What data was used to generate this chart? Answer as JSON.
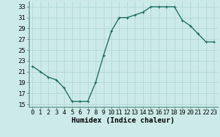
{
  "x": [
    0,
    1,
    2,
    3,
    4,
    5,
    6,
    7,
    8,
    9,
    10,
    11,
    12,
    13,
    14,
    15,
    16,
    17,
    18,
    19,
    20,
    21,
    22,
    23
  ],
  "y": [
    22,
    21,
    20,
    19.5,
    18,
    15.5,
    15.5,
    15.5,
    19,
    24,
    28.5,
    31,
    31,
    31.5,
    32,
    33,
    33,
    33,
    33,
    30.5,
    29.5,
    28,
    26.5,
    26.5
  ],
  "line_color": "#1a6b5e",
  "marker": "+",
  "markersize": 3,
  "linewidth": 1.0,
  "xlabel": "Humidex (Indice chaleur)",
  "ylim": [
    14.5,
    34.0
  ],
  "yticks": [
    15,
    17,
    19,
    21,
    23,
    25,
    27,
    29,
    31,
    33
  ],
  "xticks": [
    0,
    1,
    2,
    3,
    4,
    5,
    6,
    7,
    8,
    9,
    10,
    11,
    12,
    13,
    14,
    15,
    16,
    17,
    18,
    19,
    20,
    21,
    22,
    23
  ],
  "xtick_labels": [
    "0",
    "1",
    "2",
    "3",
    "4",
    "5",
    "6",
    "7",
    "8",
    "9",
    "10",
    "11",
    "12",
    "13",
    "14",
    "15",
    "16",
    "17",
    "18",
    "19",
    "20",
    "21",
    "22",
    "23"
  ],
  "background_color": "#cceae8",
  "grid_color": "#aad4d2",
  "tick_fontsize": 6.5,
  "xlabel_fontsize": 7.5,
  "xlim": [
    -0.5,
    23.5
  ]
}
